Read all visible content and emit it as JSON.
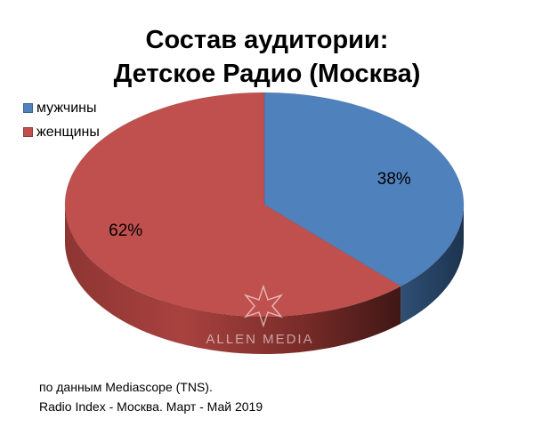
{
  "chart_data": {
    "type": "pie",
    "title_lines": [
      "Состав аудитории:",
      "Детское Радио (Москва)"
    ],
    "series": [
      {
        "name": "мужчины",
        "value": 38,
        "label": "38%",
        "color": "#4F81BD"
      },
      {
        "name": "женщины",
        "value": 62,
        "label": "62%",
        "color": "#C0504D"
      }
    ],
    "legend_position": "top-left",
    "style": "3d"
  },
  "watermark": {
    "text": "ALLEN MEDIA"
  },
  "source": {
    "line1": "по данным Mediascope (TNS).",
    "line2": "Radio Index - Москва. Март - Май 2019"
  }
}
